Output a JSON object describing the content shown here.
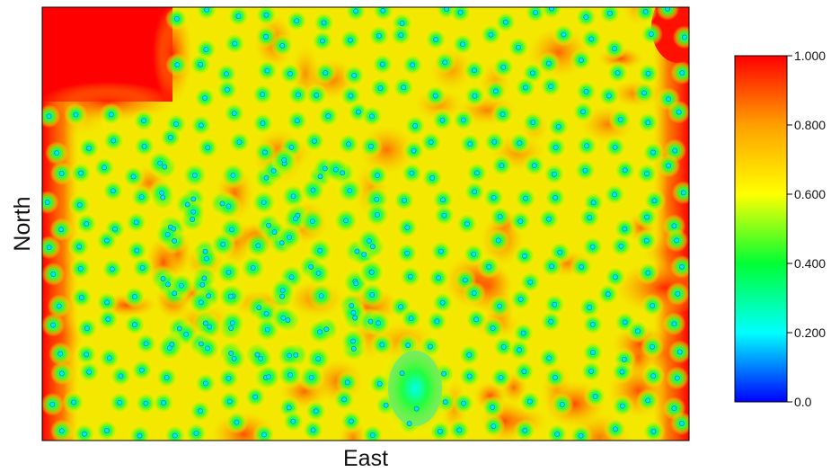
{
  "chart_data": {
    "type": "heatmap",
    "title": "",
    "xlabel": "East",
    "ylabel": "North",
    "colorbar": {
      "range": [
        0.0,
        1.0
      ],
      "ticks": [
        0.0,
        0.2,
        0.4,
        0.6,
        0.8,
        1.0
      ],
      "tick_labels": [
        "0.0",
        "0.200",
        "0.400",
        "0.600",
        "0.800",
        "1.000"
      ],
      "colors": [
        "#0000ff",
        "#00ffff",
        "#00ff33",
        "#ffff00",
        "#ffa000",
        "#ff0000"
      ]
    },
    "grid": false,
    "legend": "right",
    "description_of_field": "Spatial field; low values (0.0–0.4) at many scattered sample locations, rising to ~0.7–0.9 between them and 1.0 near the left, top-left, top-right and right edges; a low-value cluster near the lower middle."
  }
}
